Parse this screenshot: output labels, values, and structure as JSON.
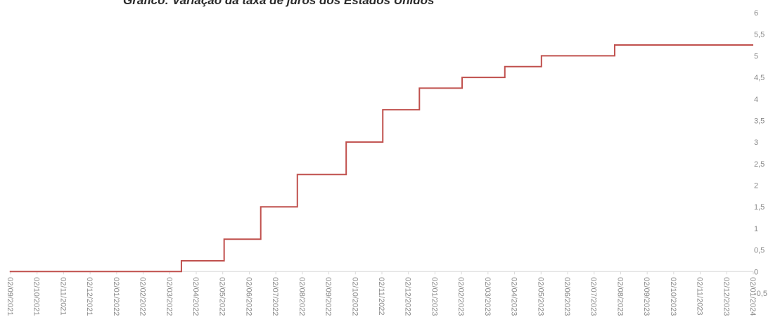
{
  "chart_data": {
    "type": "line",
    "title": "Gráfico: Variação da taxa de juros dos Estados Unidos",
    "xlabel": "",
    "ylabel": "",
    "ylim": [
      -0.5,
      6
    ],
    "y_ticks": [
      "-0,5",
      "0",
      "0,5",
      "1",
      "1,5",
      "2",
      "2,5",
      "3",
      "3,5",
      "4",
      "4,5",
      "5",
      "5,5",
      "6"
    ],
    "y_tick_values": [
      -0.5,
      0,
      0.5,
      1,
      1.5,
      2,
      2.5,
      3,
      3.5,
      4,
      4.5,
      5,
      5.5,
      6
    ],
    "x_ticks": [
      "02/09/2021",
      "02/10/2021",
      "02/11/2021",
      "02/12/2021",
      "02/01/2022",
      "02/02/2022",
      "02/03/2022",
      "02/04/2022",
      "02/05/2022",
      "02/06/2022",
      "02/07/2022",
      "02/08/2022",
      "02/09/2022",
      "02/10/2022",
      "02/11/2022",
      "02/12/2022",
      "02/01/2023",
      "02/02/2023",
      "02/03/2023",
      "02/04/2023",
      "02/05/2023",
      "02/06/2023",
      "02/07/2023",
      "02/08/2023",
      "02/09/2023",
      "02/10/2023",
      "02/11/2023",
      "02/12/2023",
      "02/01/2024"
    ],
    "series": [
      {
        "color": "#c0504d",
        "step": true,
        "points": [
          [
            "2021-09-01",
            0
          ],
          [
            "2022-03-17",
            0.25
          ],
          [
            "2022-05-05",
            0.75
          ],
          [
            "2022-06-16",
            1.5
          ],
          [
            "2022-07-28",
            2.25
          ],
          [
            "2022-09-22",
            3.0
          ],
          [
            "2022-11-03",
            3.75
          ],
          [
            "2022-12-15",
            4.25
          ],
          [
            "2023-02-02",
            4.5
          ],
          [
            "2023-03-23",
            4.75
          ],
          [
            "2023-05-04",
            5.0
          ],
          [
            "2023-07-27",
            5.25
          ],
          [
            "2024-01-02",
            5.25
          ]
        ]
      }
    ],
    "grid": false,
    "legend": "none",
    "y_axis_side": "right"
  }
}
